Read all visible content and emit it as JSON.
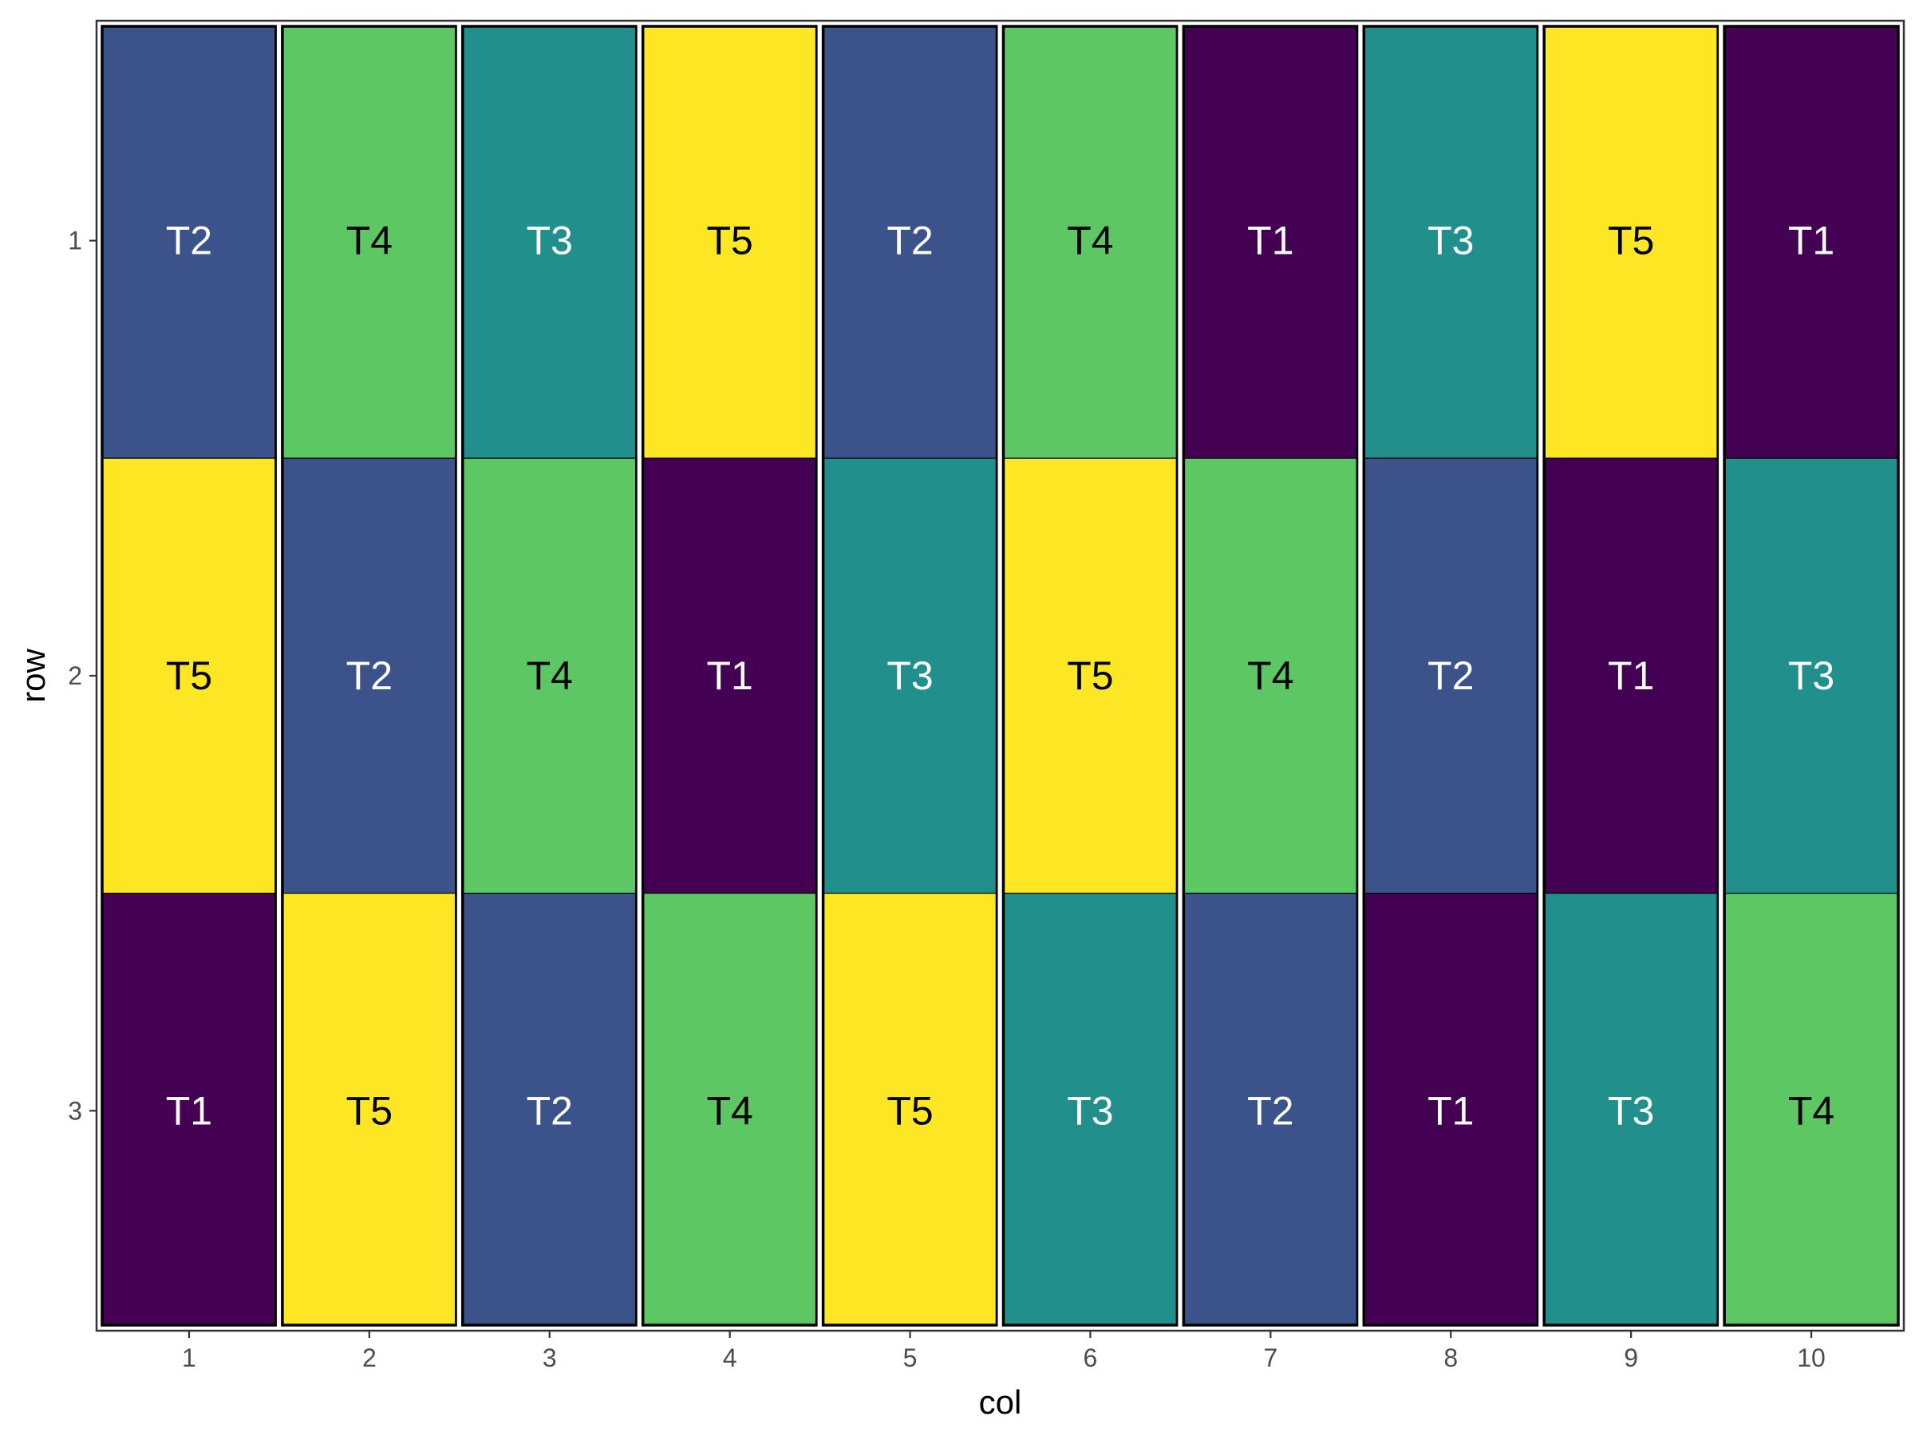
{
  "chart_data": {
    "type": "heatmap",
    "xlabel": "col",
    "ylabel": "row",
    "x_ticks": [
      "1",
      "2",
      "3",
      "4",
      "5",
      "6",
      "7",
      "8",
      "9",
      "10"
    ],
    "y_ticks": [
      "1",
      "2",
      "3"
    ],
    "grid": false,
    "legend": "none",
    "treatment_colors": {
      "T1": "#440154",
      "T2": "#3B528B",
      "T3": "#21908C",
      "T4": "#5DC863",
      "T5": "#FDE725"
    },
    "label_colors": {
      "T1": "#ffffff",
      "T2": "#ffffff",
      "T3": "#ffffff",
      "T4": "#000000",
      "T5": "#000000"
    },
    "cells": [
      [
        "T2",
        "T4",
        "T3",
        "T5",
        "T2",
        "T4",
        "T1",
        "T3",
        "T5",
        "T1"
      ],
      [
        "T5",
        "T2",
        "T4",
        "T1",
        "T3",
        "T5",
        "T4",
        "T2",
        "T1",
        "T3"
      ],
      [
        "T1",
        "T5",
        "T2",
        "T4",
        "T5",
        "T3",
        "T2",
        "T1",
        "T3",
        "T4"
      ]
    ],
    "block_outline_color": "#000000",
    "block_gap_color": "#ffffff"
  }
}
